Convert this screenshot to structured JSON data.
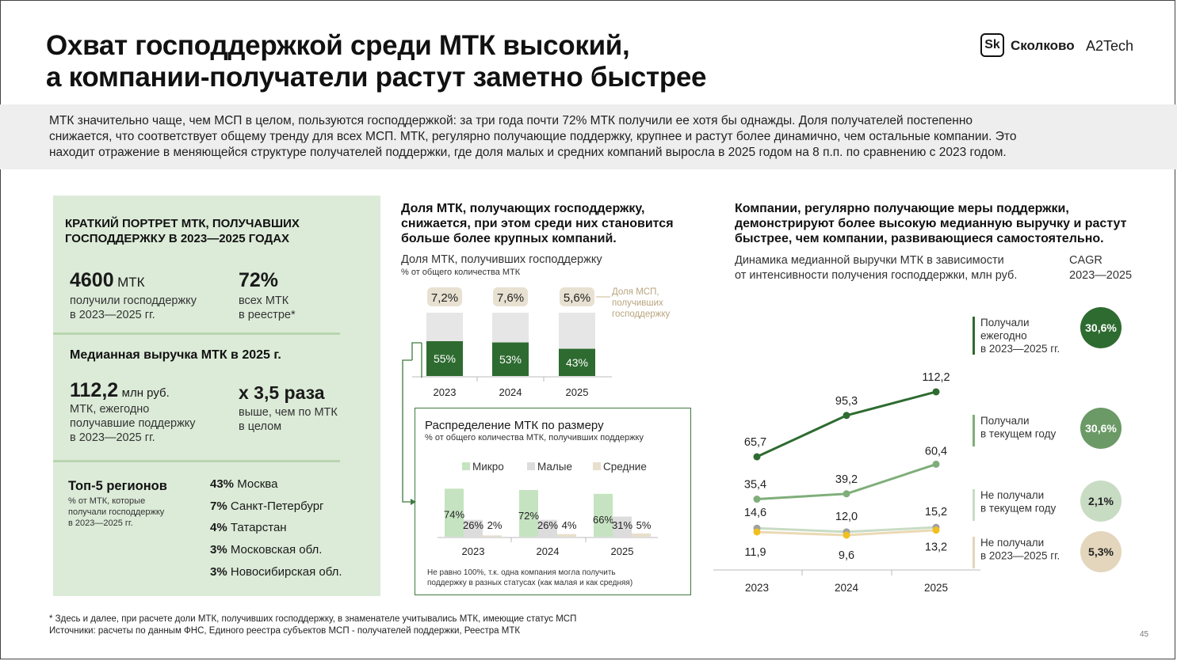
{
  "title_lines": [
    "Охват господдержкой среди МТК высокий,",
    "а компании-получатели растут заметно быстрее"
  ],
  "logo": {
    "mark": "Sk",
    "name": "Сколково",
    "partner": "A2Tech"
  },
  "intro_lines": [
    "МТК значительно чаще, чем МСП в целом, пользуются господдержкой: за три года почти 72% МТК получили ее хотя бы однажды. Доля получателей постепенно",
    "снижается, что соответствует общему тренду для всех МСП. МТК, регулярно получающие поддержку, крупнее и растут более динамично, чем остальные компании. Это",
    "находит отражение в меняющейся структуре получателей поддержки, где доля малых и средних компаний выросла в 2025 годом на 8 п.п. по сравнению с 2023 годом."
  ],
  "portrait": {
    "heading_lines": [
      "КРАТКИЙ ПОРТРЕТ МТК, ПОЛУЧАВШИХ",
      "ГОСПОДДЕРЖКУ В 2023—2025 ГОДАХ"
    ],
    "stat1": {
      "value": "4600",
      "unit": "МТК",
      "desc_lines": [
        "получили господдержку",
        "в 2023—2025 гг."
      ]
    },
    "stat2": {
      "value": "72%",
      "desc_lines": [
        "всех МТК",
        "в реестре*"
      ]
    },
    "median_heading": "Медианная выручка МТК в 2025 г.",
    "stat3": {
      "value": "112,2",
      "unit": "млн руб.",
      "desc_lines": [
        "МТК, ежегодно",
        "получавшие поддержку",
        "в 2023—2025 гг."
      ]
    },
    "stat4": {
      "value": "х 3,5 раза",
      "desc_lines": [
        "выше, чем по МТК",
        "в целом"
      ]
    },
    "regions_heading": "Топ-5 регионов",
    "regions_sub_lines": [
      "% от МТК, которые",
      "получали господдержку",
      "в 2023—2025 гг."
    ],
    "regions": [
      {
        "pct": "43%",
        "name": "Москва"
      },
      {
        "pct": "7%",
        "name": "Санкт-Петербург"
      },
      {
        "pct": "4%",
        "name": "Татарстан"
      },
      {
        "pct": "3%",
        "name": "Московская обл."
      },
      {
        "pct": "3%",
        "name": "Новосибирская обл."
      }
    ]
  },
  "middle": {
    "heading_lines": [
      "Доля МТК, получающих господдержку,",
      "снижается, при этом среди них становится",
      "больше более крупных компаний."
    ],
    "sub": "Доля МТК, получивших господдержку",
    "subsmall": "% от общего количества МТК",
    "msp_note_lines": [
      "Доля МСП,",
      "получивших",
      "господдержку"
    ],
    "dist": {
      "title": "Распределение МТК по размеру",
      "sub": "% от общего количества МТК, получивших поддержку",
      "note_lines": [
        "Не равно 100%, т.к. одна компания могла получить",
        "поддержку в разных статусах (как малая и как средняя)"
      ]
    }
  },
  "right": {
    "heading_lines": [
      "Компании, регулярно получающие меры поддержки,",
      "демонстрируют более высокую медианную выручку и растут",
      "быстрее, чем компании, развивающиеся самостоятельно."
    ],
    "sub_lines": [
      "Динамика медианной выручки МТК в зависимости",
      "от интенсивности получения господдержки, млн руб."
    ],
    "cagr_label_lines": [
      "CAGR",
      "2023—2025"
    ]
  },
  "chart_data": [
    {
      "type": "bar",
      "title": "Доля МТК, получивших господдержку",
      "ylabel": "% от общего количества МТК",
      "categories": [
        "2023",
        "2024",
        "2025"
      ],
      "series": [
        {
          "name": "",
          "values": [
            55,
            53,
            43
          ]
        }
      ],
      "top_labels": [
        "7,2%",
        "7,6%",
        "5,6%"
      ],
      "top_labels_meaning": "Доля МСП, получивших господдержку",
      "value_labels": [
        "55%",
        "53%",
        "43%"
      ],
      "colors": {
        "bar": "#2e6b30",
        "background": "#e6e6e6",
        "badge": "#e8e1d2"
      }
    },
    {
      "type": "bar",
      "title": "Распределение МТК по размеру",
      "ylabel": "% от общего количества МТК, получивших поддержку",
      "categories": [
        "2023",
        "2024",
        "2025"
      ],
      "series": [
        {
          "name": "Микро",
          "values": [
            74,
            72,
            66
          ],
          "labels": [
            "74%",
            "72%",
            "66%"
          ],
          "color": "#c5e3c0"
        },
        {
          "name": "Малые",
          "values": [
            26,
            26,
            31
          ],
          "labels": [
            "26%",
            "26%",
            "31%"
          ],
          "color": "#dcdcdc"
        },
        {
          "name": "Средние",
          "values": [
            2,
            4,
            5
          ],
          "labels": [
            "2%",
            "4%",
            "5%"
          ],
          "color": "#e8dfcc"
        }
      ]
    },
    {
      "type": "line",
      "title": "Динамика медианной выручки МТК в зависимости от интенсивности получения господдержки, млн руб.",
      "x": [
        "2023",
        "2024",
        "2025"
      ],
      "series": [
        {
          "name": "Получали ежегодно в 2023—2025 гг.",
          "legend_lines": [
            "Получали",
            "ежегодно",
            "в 2023—2025 гг."
          ],
          "values": [
            65.7,
            95.3,
            112.2
          ],
          "labels": [
            "65,7",
            "95,3",
            "112,2"
          ],
          "cagr": "30,6%",
          "color": "#2e6b30",
          "cagr_color": "#2e6b30"
        },
        {
          "name": "Получали в текущем году",
          "legend_lines": [
            "Получали",
            "в текущем году"
          ],
          "values": [
            35.4,
            39.2,
            60.4
          ],
          "labels": [
            "35,4",
            "39,2",
            "60,4"
          ],
          "cagr": "30,6%",
          "color": "#7fae7a",
          "cagr_color": "#6b9a66"
        },
        {
          "name": "Не получали в текущем году",
          "legend_lines": [
            "Не получали",
            "в текущем году"
          ],
          "values": [
            14.6,
            12.0,
            15.2
          ],
          "labels": [
            "14,6",
            "12,0",
            "15,2"
          ],
          "cagr": "2,1%",
          "color": "#c8dcc4",
          "cagr_color": "#c8dcc4"
        },
        {
          "name": "Не получали в 2023—2025 гг.",
          "legend_lines": [
            "Не получали",
            "в 2023—2025 гг."
          ],
          "values": [
            11.9,
            9.6,
            13.2
          ],
          "labels": [
            "11,9",
            "9,6",
            "13,2"
          ],
          "cagr": "5,3%",
          "color": "#ead9b4",
          "cagr_color": "#e3d6bd"
        }
      ]
    }
  ],
  "footnote_lines": [
    "* Здесь и далее, при расчете доли МТК, получивших господдержку, в знаменателе учитывались МТК, имеющие статус МСП",
    "Источники: расчеты по данным ФНС, Единого реестра субъектов МСП - получателей поддержки, Реестра МТК"
  ],
  "page_number": "45"
}
